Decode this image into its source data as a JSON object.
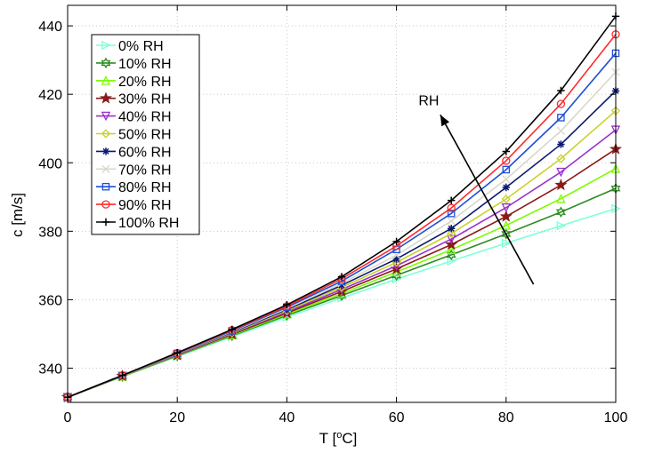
{
  "chart_data": {
    "type": "line",
    "title": "",
    "xlabel": "T [",
    "xlabel_sup": "o",
    "xlabel_end": "C]",
    "ylabel": "c [m/s]",
    "xlim": [
      0,
      100
    ],
    "ylim": [
      330,
      446
    ],
    "xticks": [
      0,
      20,
      40,
      60,
      80,
      100
    ],
    "yticks": [
      340,
      360,
      380,
      400,
      420,
      440
    ],
    "grid": true,
    "legend_position": "top-left",
    "x": [
      0,
      10,
      20,
      30,
      40,
      50,
      60,
      70,
      80,
      90,
      100
    ],
    "series": [
      {
        "name": "0% RH",
        "color": "#7fffd4",
        "marker": "triangle-right",
        "values": [
          331.5,
          337.5,
          343.4,
          349.2,
          354.9,
          360.5,
          366.0,
          371.3,
          376.5,
          381.6,
          386.6
        ]
      },
      {
        "name": "10% RH",
        "color": "#2e8b22",
        "marker": "hexagram",
        "values": [
          331.5,
          337.6,
          343.6,
          349.5,
          355.4,
          361.2,
          367.1,
          373.1,
          379.2,
          385.6,
          392.5
        ]
      },
      {
        "name": "20% RH",
        "color": "#7cfc00",
        "marker": "triangle-up",
        "values": [
          331.5,
          337.6,
          343.7,
          349.7,
          355.8,
          361.8,
          368.1,
          374.6,
          381.7,
          389.5,
          398.3
        ]
      },
      {
        "name": "30% RH",
        "color": "#8b1a1a",
        "marker": "pentagram",
        "values": [
          331.5,
          337.7,
          343.8,
          349.9,
          356.1,
          362.4,
          369.0,
          376.1,
          384.3,
          393.5,
          404.0
        ]
      },
      {
        "name": "40% RH",
        "color": "#9932cc",
        "marker": "triangle-down",
        "values": [
          331.5,
          337.7,
          343.9,
          350.1,
          356.4,
          363.0,
          369.9,
          377.7,
          386.9,
          397.3,
          409.6
        ]
      },
      {
        "name": "50% RH",
        "color": "#c8d22c",
        "marker": "diamond",
        "values": [
          331.5,
          337.7,
          344.0,
          350.3,
          356.8,
          363.6,
          370.9,
          379.3,
          389.4,
          401.2,
          415.2
        ]
      },
      {
        "name": "60% RH",
        "color": "#0a1a6e",
        "marker": "star",
        "values": [
          331.5,
          337.8,
          344.1,
          350.5,
          357.1,
          364.2,
          371.9,
          380.8,
          392.8,
          405.4,
          421.0
        ]
      },
      {
        "name": "70% RH",
        "color": "#d8d8c8",
        "marker": "x",
        "values": [
          331.5,
          337.8,
          344.2,
          350.7,
          357.4,
          364.8,
          373.0,
          383.0,
          395.2,
          409.3,
          426.5
        ]
      },
      {
        "name": "80% RH",
        "color": "#1f4fd8",
        "marker": "square",
        "values": [
          331.5,
          337.8,
          344.3,
          350.9,
          357.8,
          365.4,
          374.7,
          385.2,
          398.0,
          413.2,
          432.0
        ]
      },
      {
        "name": "90% RH",
        "color": "#ff2a2a",
        "marker": "circle",
        "values": [
          331.5,
          337.9,
          344.4,
          351.1,
          358.1,
          366.1,
          375.7,
          386.8,
          400.6,
          417.2,
          437.5
        ]
      },
      {
        "name": "100% RH",
        "color": "#000000",
        "marker": "plus",
        "values": [
          331.5,
          337.9,
          344.5,
          351.3,
          358.5,
          366.7,
          377.0,
          389.0,
          403.3,
          421.1,
          442.8
        ]
      }
    ],
    "annotation": {
      "text": "RH",
      "arrow_from": [
        85,
        364.5
      ],
      "arrow_to": [
        68,
        414
      ]
    }
  }
}
